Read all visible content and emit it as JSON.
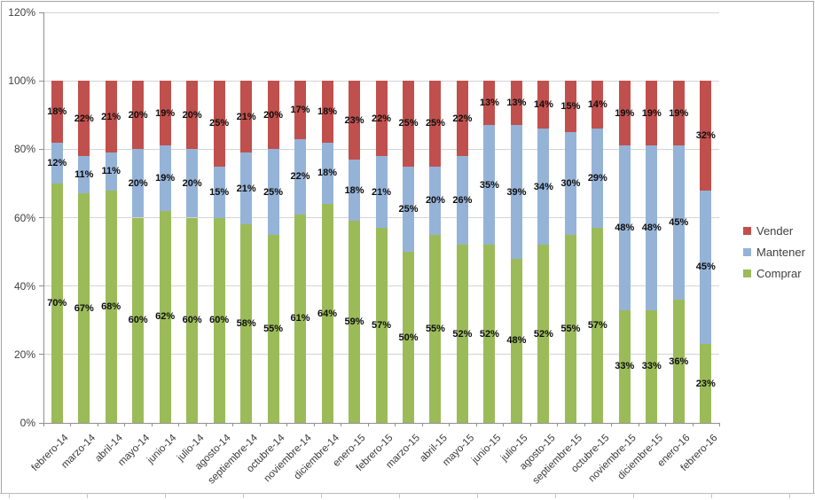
{
  "chart_data": {
    "type": "bar",
    "stacking": "percent",
    "title": "",
    "xlabel": "",
    "ylabel": "",
    "categories": [
      "febrero-14",
      "marzo-14",
      "abril-14",
      "mayo-14",
      "junio-14",
      "julio-14",
      "agosto-14",
      "septiembre-14",
      "octubre-14",
      "noviembre-14",
      "diciembre-14",
      "enero-15",
      "febrero-15",
      "marzo-15",
      "abril-15",
      "mayo-15",
      "junio-15",
      "julio-15",
      "agosto-15",
      "septiembre-15",
      "octubre-15",
      "noviembre-15",
      "diciembre-15",
      "enero-16",
      "febrero-16"
    ],
    "series": [
      {
        "name": "Comprar",
        "color": "#9BBB59",
        "values": [
          70,
          67,
          68,
          60,
          62,
          60,
          60,
          58,
          55,
          61,
          64,
          59,
          57,
          50,
          55,
          52,
          52,
          48,
          52,
          55,
          57,
          33,
          33,
          36,
          23
        ]
      },
      {
        "name": "Mantener",
        "color": "#95B3D7",
        "values": [
          12,
          11,
          11,
          20,
          19,
          20,
          15,
          21,
          25,
          22,
          18,
          18,
          21,
          25,
          20,
          26,
          35,
          39,
          34,
          30,
          29,
          48,
          48,
          45,
          45
        ]
      },
      {
        "name": "Vender",
        "color": "#C0504D",
        "values": [
          18,
          22,
          21,
          20,
          19,
          20,
          25,
          21,
          20,
          17,
          18,
          23,
          22,
          25,
          25,
          22,
          13,
          13,
          14,
          15,
          14,
          19,
          19,
          19,
          32
        ]
      }
    ],
    "y_axis": {
      "min": 0,
      "max": 120,
      "step": 20,
      "tick_labels": [
        "0%",
        "20%",
        "40%",
        "60%",
        "80%",
        "100%",
        "120%"
      ]
    },
    "data_label_suffix": "%",
    "legend": {
      "position": "right",
      "entries": [
        "Vender",
        "Mantener",
        "Comprar"
      ]
    },
    "grid": true
  },
  "colors": {
    "gridline": "#d4d4d4",
    "axis": "#8f8f8f",
    "axis_text": "#3a3a3a",
    "data_label": "#0d0d0d",
    "border": "#a6a6a6"
  }
}
